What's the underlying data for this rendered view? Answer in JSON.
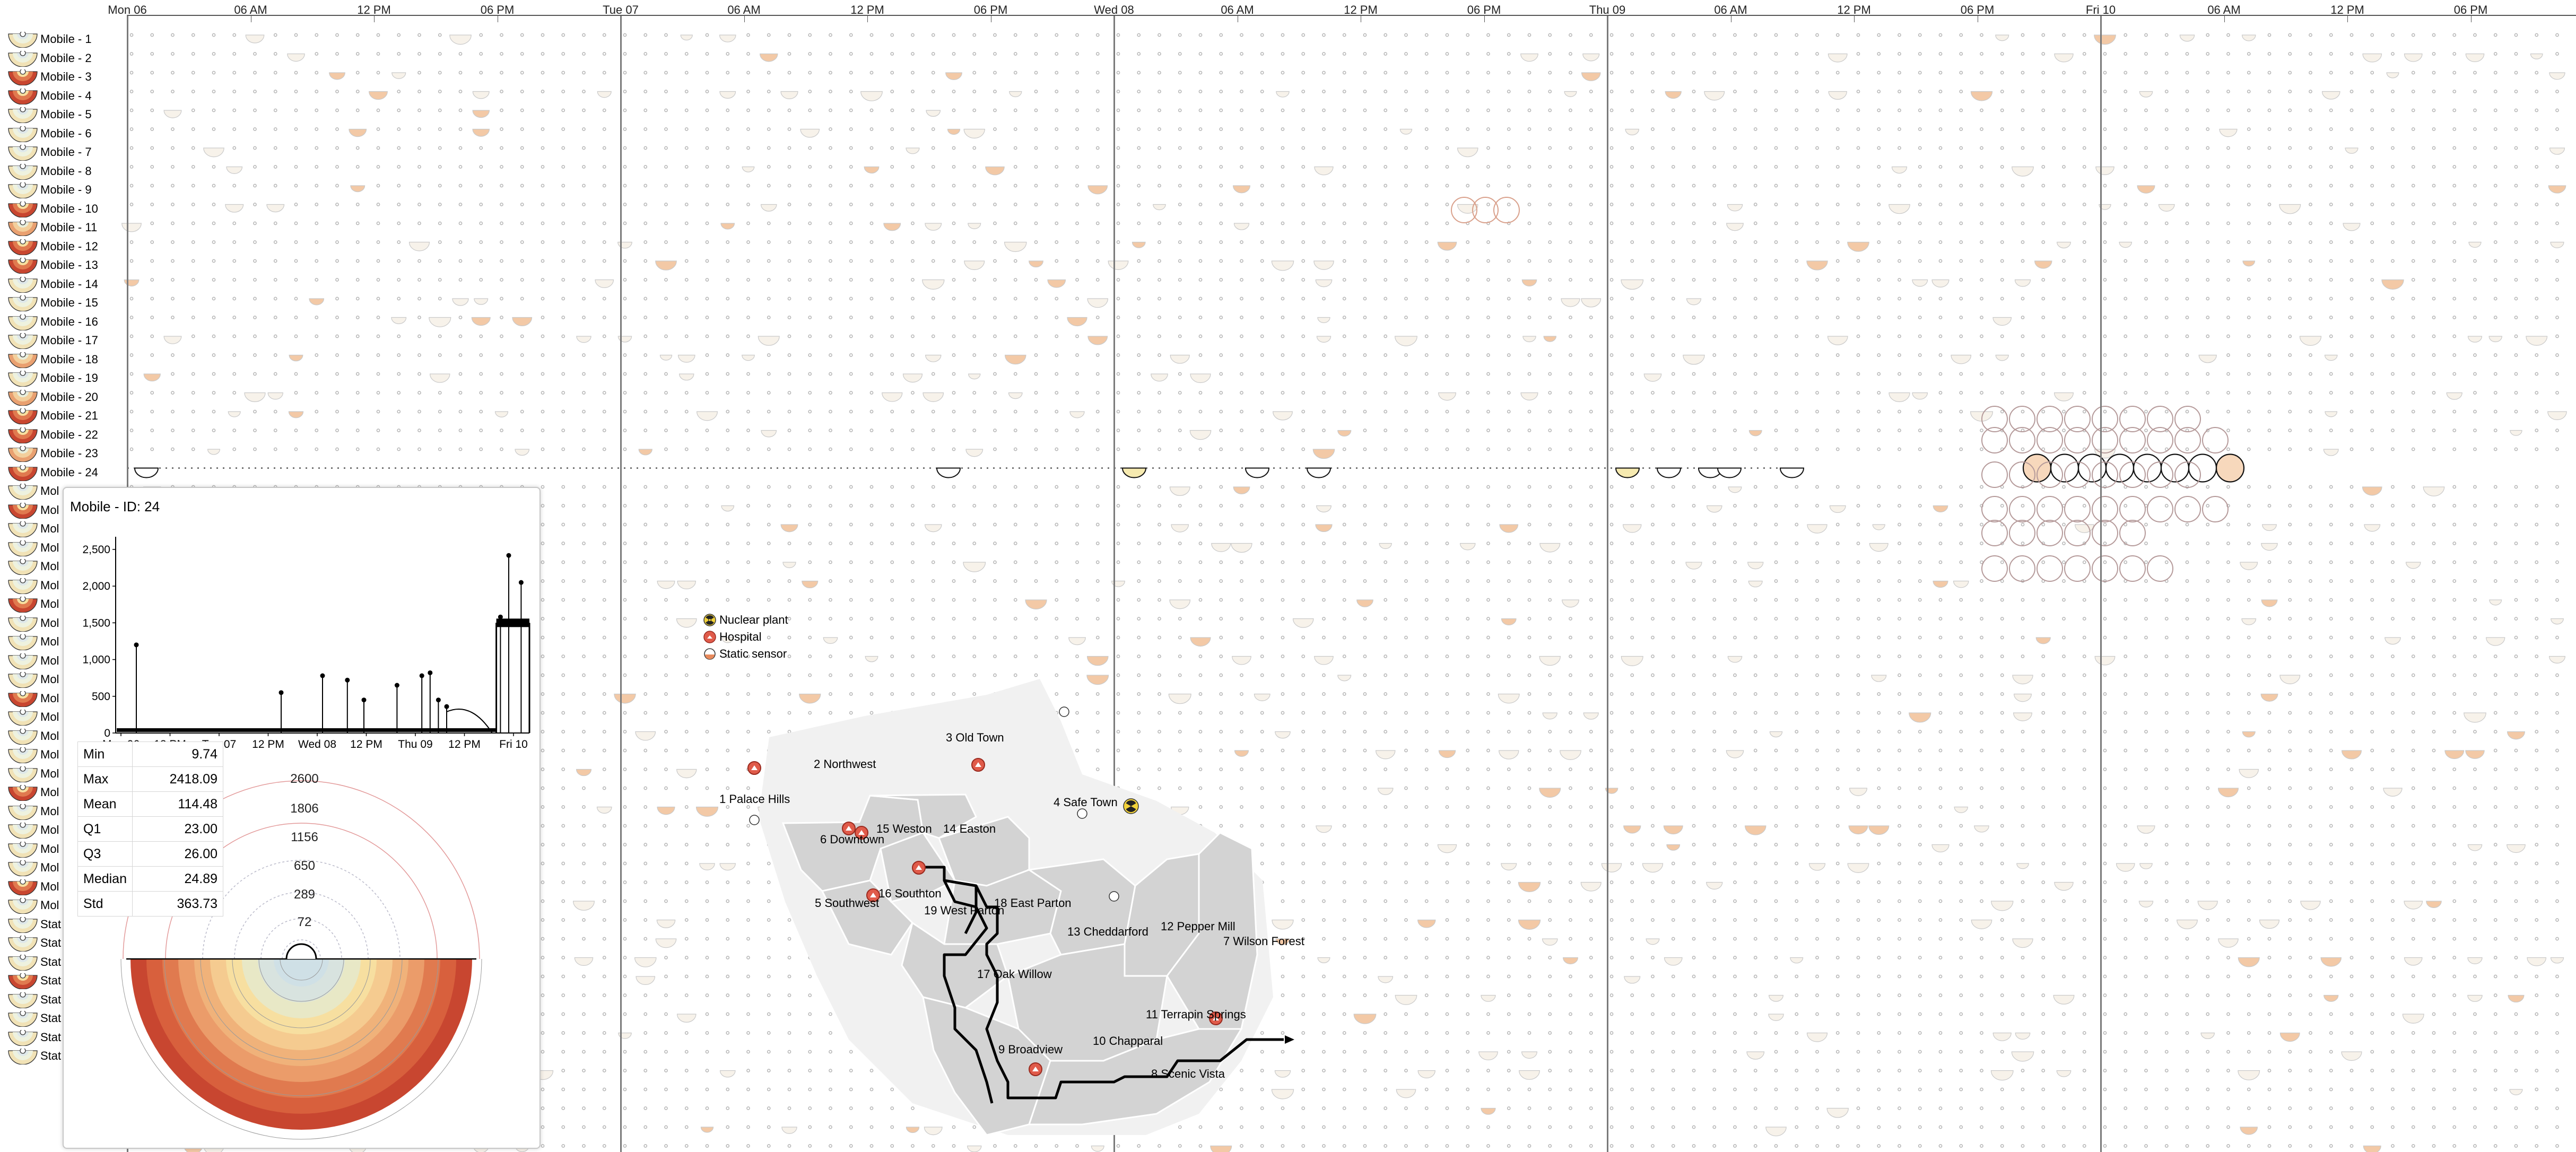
{
  "timeline": {
    "hour_labels": [
      {
        "text": "Mon 06",
        "day_start": true
      },
      {
        "text": "06 AM",
        "day_start": false
      },
      {
        "text": "12 PM",
        "day_start": false
      },
      {
        "text": "06 PM",
        "day_start": false
      },
      {
        "text": "Tue 07",
        "day_start": true
      },
      {
        "text": "06 AM",
        "day_start": false
      },
      {
        "text": "12 PM",
        "day_start": false
      },
      {
        "text": "06 PM",
        "day_start": false
      },
      {
        "text": "Wed 08",
        "day_start": true
      },
      {
        "text": "06 AM",
        "day_start": false
      },
      {
        "text": "12 PM",
        "day_start": false
      },
      {
        "text": "06 PM",
        "day_start": false
      },
      {
        "text": "Thu 09",
        "day_start": true
      },
      {
        "text": "06 AM",
        "day_start": false
      },
      {
        "text": "12 PM",
        "day_start": false
      },
      {
        "text": "06 PM",
        "day_start": false
      },
      {
        "text": "Fri 10",
        "day_start": true
      },
      {
        "text": "06 AM",
        "day_start": false
      },
      {
        "text": "12 PM",
        "day_start": false
      },
      {
        "text": "06 PM",
        "day_start": false
      }
    ]
  },
  "rows": {
    "labels": [
      "Mobile - 1",
      "Mobile - 2",
      "Mobile - 3",
      "Mobile - 4",
      "Mobile - 5",
      "Mobile - 6",
      "Mobile - 7",
      "Mobile - 8",
      "Mobile - 9",
      "Mobile - 10",
      "Mobile - 11",
      "Mobile - 12",
      "Mobile - 13",
      "Mobile - 14",
      "Mobile - 15",
      "Mobile - 16",
      "Mobile - 17",
      "Mobile - 18",
      "Mobile - 19",
      "Mobile - 20",
      "Mobile - 21",
      "Mobile - 22",
      "Mobile - 23",
      "Mobile - 24"
    ],
    "hidden_labels_prefix": [
      "Mol",
      "Mol",
      "Mol",
      "Mol",
      "Mol",
      "Mol",
      "Mol",
      "Mol",
      "Mol",
      "Mol",
      "Mol",
      "Mol",
      "Mol",
      "Mol",
      "Mol",
      "Mol",
      "Mol",
      "Mol",
      "Mol",
      "Mol",
      "Mol",
      "Mol",
      "Mol",
      "Stat",
      "Stat",
      "Stat",
      "Stat",
      "Stat",
      "Stat",
      "Stat",
      "Stat"
    ],
    "selected": "Mobile - 24"
  },
  "popup": {
    "title": "Mobile - ID: 24",
    "stats": [
      {
        "label": "Min",
        "value": "9.74"
      },
      {
        "label": "Max",
        "value": "2418.09"
      },
      {
        "label": "Mean",
        "value": "114.48"
      },
      {
        "label": "Q1",
        "value": "23.00"
      },
      {
        "label": "Q3",
        "value": "26.00"
      },
      {
        "label": "Median",
        "value": "24.89"
      },
      {
        "label": "Std",
        "value": "363.73"
      }
    ],
    "radial_labels": [
      "2600",
      "1806",
      "1156",
      "650",
      "289",
      "72"
    ]
  },
  "chart_data": {
    "type": "line",
    "title": "",
    "x_ticks": [
      "Mon 06",
      "12 PM",
      "Tue 07",
      "12 PM",
      "Wed 08",
      "12 PM",
      "Thu 09",
      "12 PM",
      "Fri 10"
    ],
    "y_ticks": [
      "0",
      "500",
      "1,000",
      "1,500",
      "2,000",
      "2,500"
    ],
    "ylim": [
      0,
      2600
    ],
    "baseline": 25,
    "spikes": [
      {
        "t": 0.05,
        "y": 1200
      },
      {
        "t": 0.4,
        "y": 550
      },
      {
        "t": 0.5,
        "y": 780
      },
      {
        "t": 0.56,
        "y": 720
      },
      {
        "t": 0.6,
        "y": 450
      },
      {
        "t": 0.68,
        "y": 650
      },
      {
        "t": 0.74,
        "y": 780
      },
      {
        "t": 0.76,
        "y": 820
      },
      {
        "t": 0.78,
        "y": 450
      },
      {
        "t": 0.8,
        "y": 360
      },
      {
        "t": 0.93,
        "y": 1580
      },
      {
        "t": 0.95,
        "y": 2418
      },
      {
        "t": 0.98,
        "y": 2050
      }
    ],
    "plateau": {
      "t_start": 0.92,
      "t_end": 1.0,
      "y": 1500
    }
  },
  "map": {
    "legend": [
      {
        "icon": "nuclear-plant-icon",
        "label": "Nuclear plant"
      },
      {
        "icon": "hospital-icon",
        "label": "Hospital"
      },
      {
        "icon": "static-sensor-icon",
        "label": "Static sensor"
      }
    ],
    "neighborhoods": [
      "1 Palace Hills",
      "2 Northwest",
      "3 Old Town",
      "4 Safe Town",
      "5 Southwest",
      "6 Downtown",
      "7 Wilson Forest",
      "8 Scenic Vista",
      "9 Broadview",
      "10 Chapparal",
      "11 Terrapin Springs",
      "12 Pepper Mill",
      "13 Cheddarford",
      "14 Easton",
      "15 Weston",
      "16 Southton",
      "17 Oak Willow",
      "18 East Parton",
      "19 West Parton"
    ]
  },
  "colors": {
    "heat_ramp": [
      "#c84630",
      "#e07a4f",
      "#f0b27a",
      "#f7dfa0",
      "#d8e3df",
      "#cfe0e6"
    ],
    "grid_dot": "#b4b4b4",
    "day_line": "#7a7a7a",
    "track": "#000000",
    "map_fill": "#cfcfcf"
  }
}
